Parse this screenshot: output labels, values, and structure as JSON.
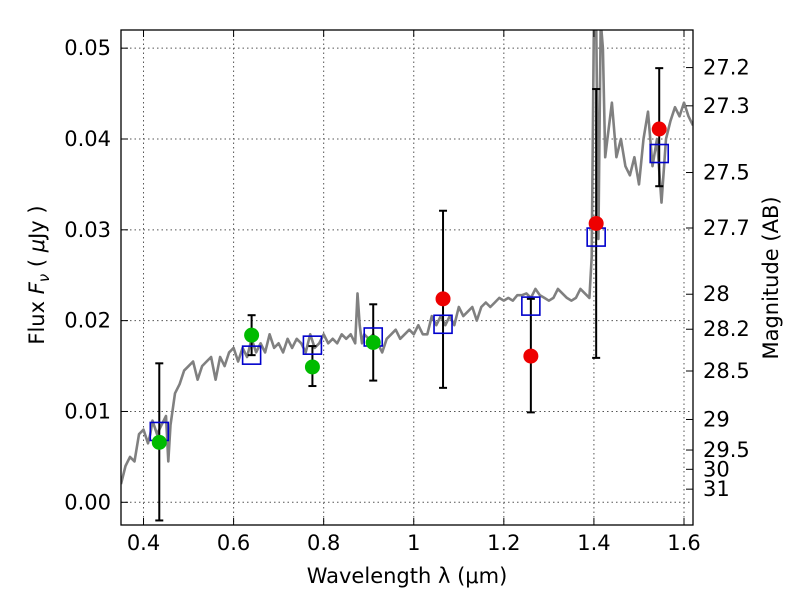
{
  "chart_data": {
    "type": "scatter",
    "xlabel": "Wavelength  λ (μm)",
    "ylabel_parts": [
      "Flux  ",
      "F",
      "ν",
      "  ( ",
      "μ",
      "Jy )"
    ],
    "y2label": "Magnitude (AB)",
    "xlim": [
      0.35,
      1.62
    ],
    "ylim": [
      -0.0025,
      0.052
    ],
    "grid": true,
    "x_ticks": [
      {
        "value": 0.4,
        "label": "0.4"
      },
      {
        "value": 0.6,
        "label": "0.6"
      },
      {
        "value": 0.8,
        "label": "0.8"
      },
      {
        "value": 1.0,
        "label": "1"
      },
      {
        "value": 1.2,
        "label": "1.2"
      },
      {
        "value": 1.4,
        "label": "1.4"
      },
      {
        "value": 1.6,
        "label": "1.6"
      }
    ],
    "y_ticks": [
      {
        "value": 0.0,
        "label": "0.00"
      },
      {
        "value": 0.01,
        "label": "0.01"
      },
      {
        "value": 0.02,
        "label": "0.02"
      },
      {
        "value": 0.03,
        "label": "0.03"
      },
      {
        "value": 0.04,
        "label": "0.04"
      },
      {
        "value": 0.05,
        "label": "0.05"
      }
    ],
    "mag_ticks": [
      "27.2",
      "27.3",
      "27.5",
      "27.7",
      "28",
      "28.2",
      "28.5",
      "29",
      "29.5",
      "30",
      "31"
    ],
    "colors": {
      "model": "#808080",
      "model_photometry": "#0000cc",
      "detections_green": "#00bb00",
      "detections_red": "#ee0000",
      "errorbar": "#000000",
      "grid": "#555555"
    },
    "model_spectrum": {
      "x": [
        0.35,
        0.36,
        0.37,
        0.38,
        0.39,
        0.4,
        0.41,
        0.415,
        0.42,
        0.43,
        0.44,
        0.45,
        0.455,
        0.46,
        0.47,
        0.48,
        0.49,
        0.5,
        0.51,
        0.52,
        0.53,
        0.54,
        0.55,
        0.56,
        0.57,
        0.58,
        0.59,
        0.6,
        0.61,
        0.62,
        0.63,
        0.64,
        0.65,
        0.66,
        0.67,
        0.68,
        0.69,
        0.7,
        0.71,
        0.72,
        0.73,
        0.74,
        0.75,
        0.76,
        0.77,
        0.78,
        0.79,
        0.8,
        0.81,
        0.82,
        0.83,
        0.84,
        0.85,
        0.86,
        0.87,
        0.875,
        0.88,
        0.885,
        0.89,
        0.9,
        0.91,
        0.92,
        0.93,
        0.94,
        0.95,
        0.96,
        0.97,
        0.98,
        0.99,
        1.0,
        1.01,
        1.02,
        1.03,
        1.04,
        1.05,
        1.06,
        1.07,
        1.08,
        1.09,
        1.1,
        1.11,
        1.12,
        1.13,
        1.14,
        1.15,
        1.16,
        1.17,
        1.18,
        1.19,
        1.2,
        1.21,
        1.22,
        1.23,
        1.24,
        1.25,
        1.26,
        1.27,
        1.28,
        1.29,
        1.3,
        1.31,
        1.32,
        1.33,
        1.34,
        1.35,
        1.36,
        1.37,
        1.38,
        1.39,
        1.395,
        1.4,
        1.405,
        1.41,
        1.415,
        1.42,
        1.425,
        1.43,
        1.44,
        1.45,
        1.46,
        1.47,
        1.48,
        1.49,
        1.5,
        1.51,
        1.52,
        1.53,
        1.54,
        1.55,
        1.56,
        1.57,
        1.58,
        1.59,
        1.6,
        1.61,
        1.62
      ],
      "y": [
        0.002,
        0.004,
        0.005,
        0.0045,
        0.0075,
        0.008,
        0.0065,
        0.0075,
        0.009,
        0.0075,
        0.0085,
        0.0095,
        0.0045,
        0.0085,
        0.012,
        0.013,
        0.0145,
        0.015,
        0.0155,
        0.0135,
        0.015,
        0.0155,
        0.016,
        0.0135,
        0.016,
        0.015,
        0.0165,
        0.017,
        0.0155,
        0.017,
        0.016,
        0.018,
        0.0165,
        0.0175,
        0.0165,
        0.0185,
        0.017,
        0.0175,
        0.0165,
        0.018,
        0.017,
        0.018,
        0.0175,
        0.0165,
        0.0185,
        0.017,
        0.0175,
        0.0185,
        0.0175,
        0.018,
        0.0175,
        0.0185,
        0.018,
        0.0185,
        0.0175,
        0.023,
        0.0195,
        0.0175,
        0.0185,
        0.018,
        0.0185,
        0.0175,
        0.0165,
        0.018,
        0.0185,
        0.019,
        0.018,
        0.0185,
        0.019,
        0.0185,
        0.0195,
        0.0185,
        0.0185,
        0.0205,
        0.0195,
        0.0205,
        0.0195,
        0.0205,
        0.0195,
        0.0215,
        0.0205,
        0.021,
        0.0215,
        0.02,
        0.0215,
        0.022,
        0.0215,
        0.022,
        0.0225,
        0.0222,
        0.0225,
        0.0222,
        0.0228,
        0.0228,
        0.023,
        0.0225,
        0.0235,
        0.0228,
        0.0225,
        0.0222,
        0.0225,
        0.0235,
        0.023,
        0.0225,
        0.0222,
        0.0225,
        0.0235,
        0.023,
        0.0225,
        0.027,
        0.053,
        0.053,
        0.029,
        0.053,
        0.05,
        0.038,
        0.04,
        0.044,
        0.038,
        0.04,
        0.037,
        0.036,
        0.038,
        0.035,
        0.04,
        0.043,
        0.037,
        0.04,
        0.033,
        0.04,
        0.042,
        0.0435,
        0.0425,
        0.044,
        0.0425,
        0.0415
      ]
    },
    "model_photometry": {
      "x": [
        0.435,
        0.64,
        0.775,
        0.91,
        1.065,
        1.26,
        1.405,
        1.545
      ],
      "y": [
        0.0078,
        0.0162,
        0.0173,
        0.0182,
        0.0196,
        0.0216,
        0.0292,
        0.0384
      ]
    },
    "observed": [
      {
        "x": 0.435,
        "y": 0.0066,
        "lo": -0.002,
        "hi": 0.0153,
        "color": "green"
      },
      {
        "x": 0.64,
        "y": 0.0184,
        "lo": 0.0162,
        "hi": 0.0206,
        "color": "green"
      },
      {
        "x": 0.775,
        "y": 0.0149,
        "lo": 0.0128,
        "hi": 0.0172,
        "color": "green"
      },
      {
        "x": 0.91,
        "y": 0.0176,
        "lo": 0.0134,
        "hi": 0.0218,
        "color": "green"
      },
      {
        "x": 1.065,
        "y": 0.0224,
        "lo": 0.0126,
        "hi": 0.0321,
        "color": "red"
      },
      {
        "x": 1.26,
        "y": 0.0161,
        "lo": 0.0099,
        "hi": 0.0224,
        "color": "red"
      },
      {
        "x": 1.405,
        "y": 0.0307,
        "lo": 0.0159,
        "hi": 0.0455,
        "color": "red"
      },
      {
        "x": 1.545,
        "y": 0.0411,
        "lo": 0.0348,
        "hi": 0.0478,
        "color": "red"
      }
    ]
  }
}
